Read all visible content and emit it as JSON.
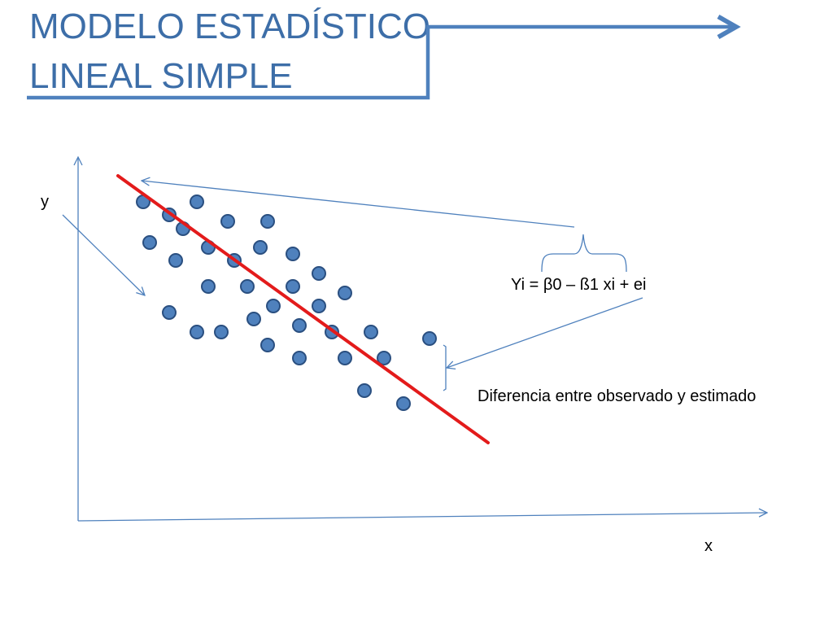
{
  "title": {
    "line1": "MODELO ESTADÍSTICO",
    "line2": "LINEAL SIMPLE"
  },
  "labels": {
    "y_axis": "y",
    "x_axis": "x",
    "equation": "Yi = β0 – ß1 xi + ei",
    "difference": "Diferencia entre observado y estimado"
  },
  "colors": {
    "title": "#3d6ea8",
    "accent_line": "#4f81bd",
    "regression_line": "#e31b1b",
    "dot_fill": "#4f81bd",
    "dot_stroke": "#2a4f80"
  }
}
